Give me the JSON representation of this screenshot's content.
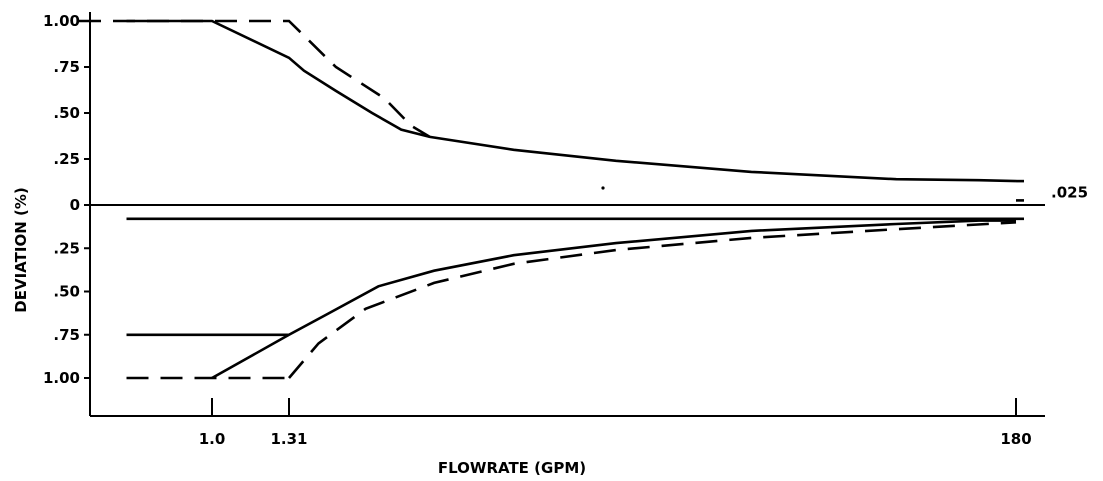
{
  "chart_data": {
    "type": "line",
    "title": "",
    "xlabel": "FLOWRATE (GPM)",
    "ylabel": "DEVIATION (%)",
    "x_ticks": [
      {
        "value": 1.0,
        "label": "1.0"
      },
      {
        "value": 1.31,
        "label": "1.31"
      },
      {
        "value": 180,
        "label": "180"
      }
    ],
    "y_ticks": [
      {
        "value": 1.0,
        "label": "1.00"
      },
      {
        "value": 0.75,
        "label": ".75"
      },
      {
        "value": 0.5,
        "label": ".50"
      },
      {
        "value": 0.25,
        "label": ".25"
      },
      {
        "value": 0,
        "label": "0"
      },
      {
        "value": -0.25,
        "label": ".25"
      },
      {
        "value": -0.5,
        "label": ".50"
      },
      {
        "value": -0.75,
        "label": ".75"
      },
      {
        "value": -1.0,
        "label": "1.00"
      }
    ],
    "ylim": [
      -1.2,
      1.0
    ],
    "annotations": [
      {
        "text": ".025",
        "x": 180,
        "y": 0.025
      }
    ],
    "series": [
      {
        "style": "solid",
        "points": [
          [
            0.55,
            1.0
          ],
          [
            1.0,
            1.0
          ],
          [
            1.31,
            0.8
          ],
          [
            1.45,
            0.73
          ],
          [
            1.8,
            0.62
          ],
          [
            2.3,
            0.5
          ],
          [
            2.8,
            0.41
          ],
          [
            3.4,
            0.37
          ],
          [
            6,
            0.3
          ],
          [
            12,
            0.24
          ],
          [
            30,
            0.18
          ],
          [
            80,
            0.14
          ],
          [
            140,
            0.135
          ],
          [
            180,
            0.13
          ]
        ]
      },
      {
        "style": "dashed",
        "points": [
          [
            0.3,
            1.0
          ],
          [
            1.31,
            1.0
          ],
          [
            1.8,
            0.75
          ],
          [
            2.5,
            0.58
          ],
          [
            3.0,
            0.43
          ],
          [
            3.4,
            0.37
          ]
        ]
      },
      {
        "style": "dashed",
        "points": [
          [
            180,
            0.13
          ],
          [
            190,
            0.13
          ]
        ]
      },
      {
        "style": "solid",
        "points": [
          [
            0.55,
            -0.08
          ],
          [
            190,
            -0.08
          ]
        ]
      },
      {
        "style": "dashed",
        "points": [
          [
            180,
            0.025
          ],
          [
            190,
            0.025
          ]
        ]
      },
      {
        "style": "solid",
        "points": [
          [
            1.0,
            -1.0
          ],
          [
            1.31,
            -0.75
          ],
          [
            1.7,
            -0.63
          ],
          [
            2.4,
            -0.47
          ],
          [
            3.5,
            -0.38
          ],
          [
            6,
            -0.29
          ],
          [
            12,
            -0.22
          ],
          [
            30,
            -0.15
          ],
          [
            80,
            -0.11
          ],
          [
            140,
            -0.09
          ],
          [
            180,
            -0.09
          ]
        ]
      },
      {
        "style": "solid",
        "points": [
          [
            0.55,
            -0.75
          ],
          [
            1.31,
            -0.75
          ]
        ]
      },
      {
        "style": "dashed",
        "points": [
          [
            0.55,
            -1.0
          ],
          [
            1.31,
            -1.0
          ]
        ]
      },
      {
        "style": "dashed",
        "points": [
          [
            1.31,
            -1.0
          ],
          [
            1.6,
            -0.8
          ],
          [
            2.2,
            -0.6
          ],
          [
            3.5,
            -0.45
          ],
          [
            6,
            -0.34
          ],
          [
            12,
            -0.26
          ],
          [
            30,
            -0.19
          ],
          [
            80,
            -0.14
          ],
          [
            180,
            -0.1
          ]
        ]
      }
    ]
  }
}
